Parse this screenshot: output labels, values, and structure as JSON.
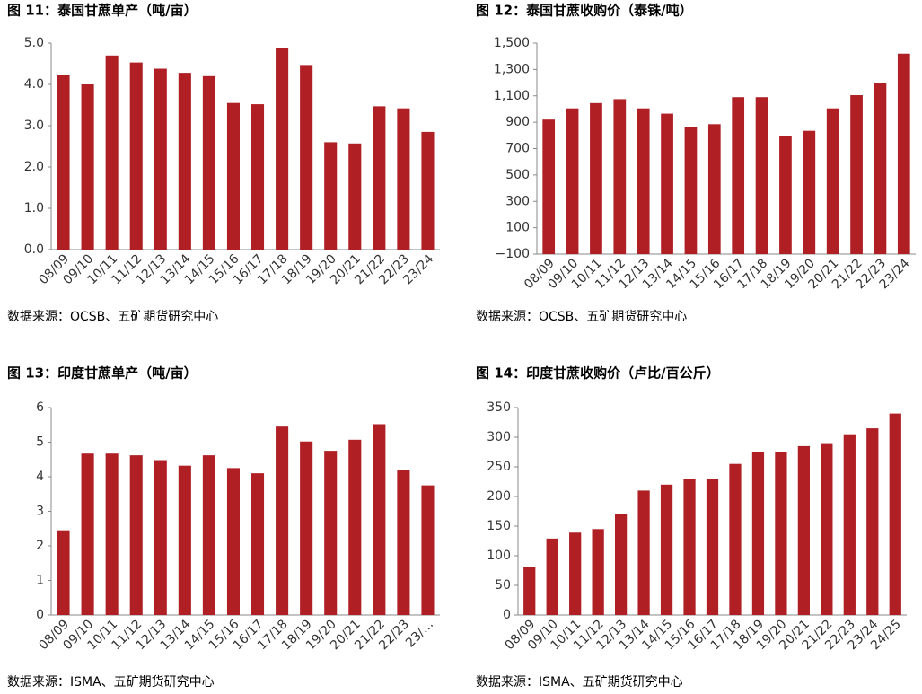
{
  "chart_data": [
    {
      "type": "bar",
      "title": "图 11：泰国甘蔗单产（吨/亩）",
      "source": "数据来源：OCSB、五矿期货研究中心",
      "categories": [
        "08/09",
        "09/10",
        "10/11",
        "11/12",
        "12/13",
        "13/14",
        "14/15",
        "15/16",
        "16/17",
        "17/18",
        "18/19",
        "19/20",
        "20/21",
        "21/22",
        "22/23",
        "23/24"
      ],
      "values": [
        4.22,
        4.0,
        4.7,
        4.53,
        4.38,
        4.28,
        4.2,
        3.55,
        3.52,
        4.87,
        4.47,
        2.6,
        2.57,
        3.47,
        3.42,
        2.85
      ],
      "color": "#b01f24",
      "ylim": [
        0,
        5
      ],
      "yticks": [
        {
          "value": 0,
          "label": "0.0"
        },
        {
          "value": 1,
          "label": "1.0"
        },
        {
          "value": 2,
          "label": "2.0"
        },
        {
          "value": 3,
          "label": "3.0"
        },
        {
          "value": 4,
          "label": "4.0"
        },
        {
          "value": 5,
          "label": "5.0"
        }
      ]
    },
    {
      "type": "bar",
      "title": "图 12：泰国甘蔗收购价（泰铢/吨）",
      "source": "数据来源：OCSB、五矿期货研究中心",
      "categories": [
        "08/09",
        "09/10",
        "10/11",
        "11/12",
        "12/13",
        "13/14",
        "14/15",
        "15/16",
        "16/17",
        "17/18",
        "18/19",
        "19/20",
        "20/21",
        "21/22",
        "22/23",
        "23/24"
      ],
      "values": [
        920,
        1005,
        1045,
        1075,
        1005,
        965,
        860,
        885,
        1090,
        1090,
        795,
        835,
        1005,
        1105,
        1195,
        1420
      ],
      "color": "#b01f24",
      "ylim": [
        -100,
        1500
      ],
      "yticks": [
        {
          "value": -100,
          "label": "−100"
        },
        100,
        300,
        500,
        700,
        900,
        {
          "value": 1100,
          "label": "1,100"
        },
        {
          "value": 1300,
          "label": "1,300"
        },
        {
          "value": 1500,
          "label": "1,500"
        }
      ]
    },
    {
      "type": "bar",
      "title": "图 13：印度甘蔗单产（吨/亩）",
      "source": "数据来源：ISMA、五矿期货研究中心",
      "categories": [
        "08/09",
        "09/10",
        "10/11",
        "11/12",
        "12/13",
        "13/14",
        "14/15",
        "15/16",
        "16/17",
        "17/18",
        "18/19",
        "19/20",
        "20/21",
        "21/22",
        "22/23",
        "23/…"
      ],
      "values": [
        2.45,
        4.67,
        4.67,
        4.62,
        4.48,
        4.32,
        4.62,
        4.25,
        4.1,
        5.45,
        5.02,
        4.75,
        5.07,
        5.52,
        4.2,
        3.75
      ],
      "color": "#b01f24",
      "ylim": [
        0,
        6
      ],
      "yticks": [
        0,
        1,
        2,
        3,
        4,
        5,
        6
      ]
    },
    {
      "type": "bar",
      "title": "图 14：印度甘蔗收购价（卢比/百公斤）",
      "source": "数据来源：ISMA、五矿期货研究中心",
      "categories": [
        "08/09",
        "09/10",
        "10/11",
        "11/12",
        "12/13",
        "13/14",
        "14/15",
        "15/16",
        "16/17",
        "17/18",
        "18/19",
        "19/20",
        "20/21",
        "21/22",
        "22/23",
        "23/24",
        "24/25"
      ],
      "values": [
        81,
        129,
        139,
        145,
        170,
        210,
        220,
        230,
        230,
        255,
        275,
        275,
        285,
        290,
        305,
        315,
        340
      ],
      "color": "#b01f24",
      "ylim": [
        0,
        350
      ],
      "yticks": [
        0,
        50,
        100,
        150,
        200,
        250,
        300,
        350
      ]
    }
  ]
}
